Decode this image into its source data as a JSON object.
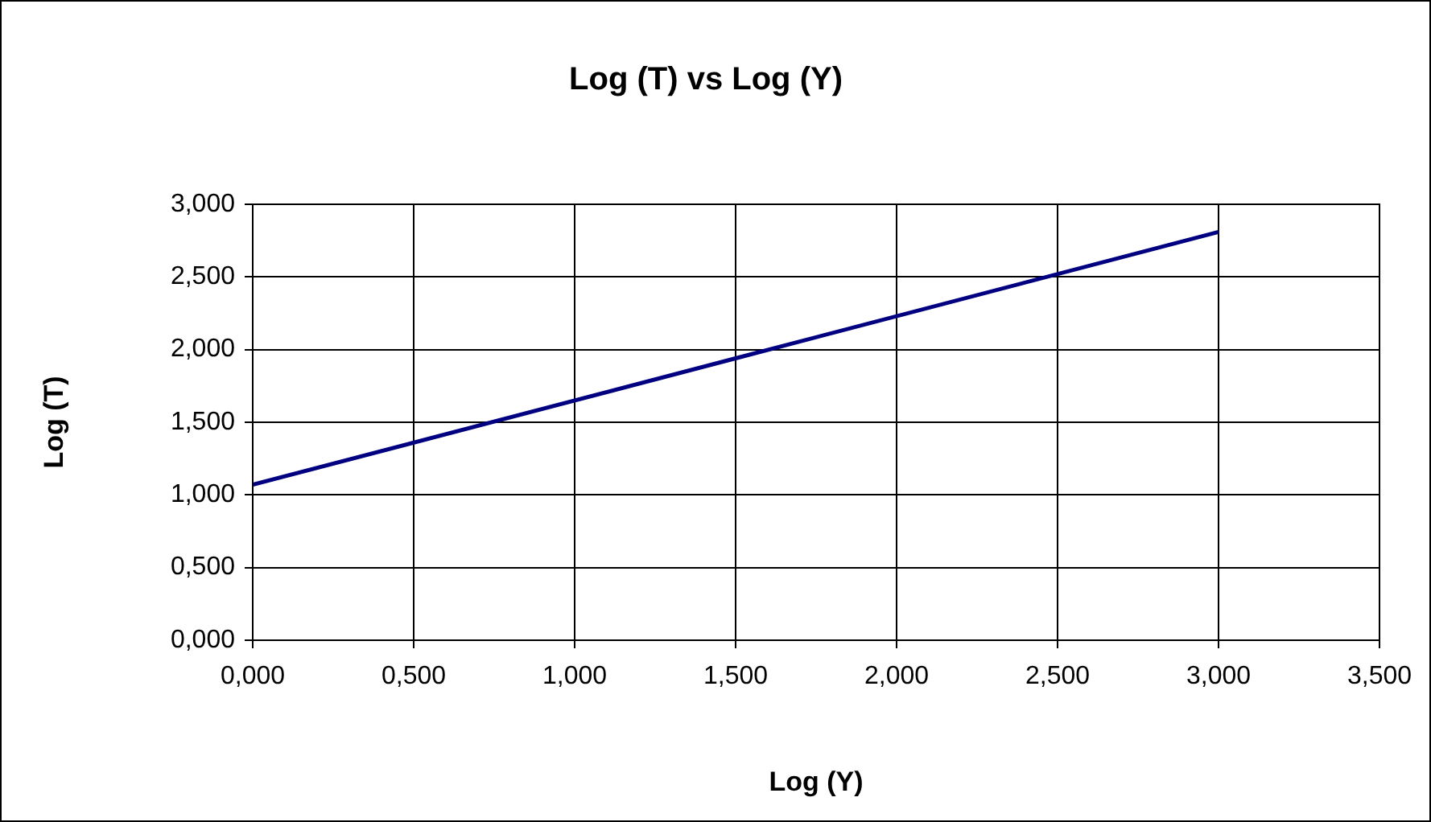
{
  "chart_data": {
    "type": "line",
    "title": "Log (T) vs Log (Y)",
    "xlabel": "Log (Y)",
    "ylabel": "Log (T)",
    "x": [
      0,
      1.5,
      3
    ],
    "series": [
      {
        "color": "#000080",
        "values": [
          1.07,
          1.94,
          2.81
        ]
      }
    ],
    "xlim": [
      0,
      3.5
    ],
    "ylim": [
      0,
      3
    ],
    "xticks": [
      {
        "value": 0,
        "label": "0,000"
      },
      {
        "value": 0.5,
        "label": "0,500"
      },
      {
        "value": 1,
        "label": "1,000"
      },
      {
        "value": 1.5,
        "label": "1,500"
      },
      {
        "value": 2,
        "label": "2,000"
      },
      {
        "value": 2.5,
        "label": "2,500"
      },
      {
        "value": 3,
        "label": "3,000"
      },
      {
        "value": 3.5,
        "label": "3,500"
      }
    ],
    "yticks": [
      {
        "value": 0,
        "label": "0,000"
      },
      {
        "value": 0.5,
        "label": "0,500"
      },
      {
        "value": 1,
        "label": "1,000"
      },
      {
        "value": 1.5,
        "label": "1,500"
      },
      {
        "value": 2,
        "label": "2,000"
      },
      {
        "value": 2.5,
        "label": "2,500"
      },
      {
        "value": 3,
        "label": "3,000"
      }
    ],
    "grid": true,
    "marker": "none",
    "line_style": "solid"
  }
}
